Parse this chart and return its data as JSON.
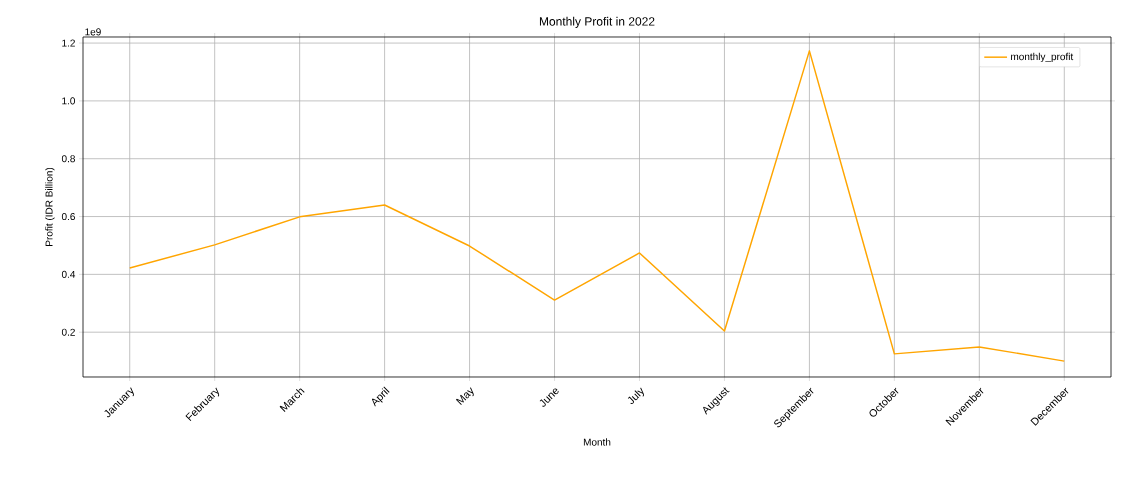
{
  "chart_data": {
    "type": "line",
    "title": "Monthly Profit in 2022",
    "xlabel": "Month",
    "ylabel": "Profit (IDR Billion)",
    "annotations": [
      "1e9"
    ],
    "categories": [
      "January",
      "February",
      "March",
      "April",
      "May",
      "June",
      "July",
      "August",
      "September",
      "October",
      "November",
      "December"
    ],
    "series": [
      {
        "name": "monthly_profit",
        "color": "#ffa500",
        "values": [
          0.422,
          0.502,
          0.599,
          0.64,
          0.498,
          0.311,
          0.474,
          0.204,
          1.173,
          0.125,
          0.149,
          0.1
        ]
      }
    ],
    "ylim": [
      0.045,
      1.221
    ],
    "yticks": [
      0.2,
      0.4,
      0.6,
      0.8,
      {
        "value": 1.0,
        "label": "1.0"
      },
      1.2
    ],
    "grid": true,
    "legend": "top right"
  }
}
